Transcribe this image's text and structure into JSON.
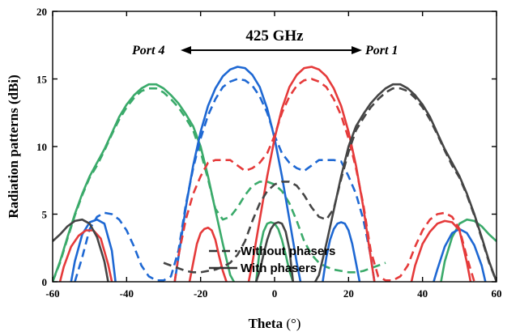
{
  "chart_data": {
    "type": "line",
    "title": "",
    "xlabel_main": "Theta",
    "xlabel_unit": "(°)",
    "ylabel": "Radiation patterns (dBi)",
    "xlim": [
      -60,
      60
    ],
    "ylim": [
      0,
      20
    ],
    "xticks": [
      -60,
      -40,
      -20,
      0,
      20,
      40,
      60
    ],
    "yticks": [
      0,
      5,
      10,
      15,
      20
    ],
    "grid": false,
    "legend_position": "bottom-center",
    "legend": [
      {
        "label": "Without phasers",
        "style": "dashed",
        "color": "#333333"
      },
      {
        "label": "With phasers",
        "style": "solid",
        "color": "#333333"
      }
    ],
    "annotations": {
      "frequency": "425 GHz",
      "left_port": "Port 4",
      "right_port": "Port 1"
    },
    "series": [
      {
        "port": "4",
        "color": "#3aaa6a",
        "style": "solid",
        "x": [
          -60,
          -58,
          -56,
          -54,
          -52,
          -50,
          -48,
          -46,
          -44,
          -42,
          -40,
          -38,
          -36,
          -34,
          -32,
          -30,
          -28,
          -26,
          -24,
          -22,
          -20,
          -18,
          -16,
          -14,
          -12,
          -11
        ],
        "y": [
          0,
          1.5,
          3.3,
          5.0,
          6.5,
          7.8,
          8.8,
          9.8,
          11.0,
          12.2,
          13.1,
          13.8,
          14.3,
          14.6,
          14.6,
          14.3,
          13.8,
          13.2,
          12.4,
          11.5,
          10.0,
          7.8,
          5.3,
          2.8,
          0.5,
          0
        ]
      },
      {
        "port": "4",
        "color": "#3aaa6a",
        "style": "solid",
        "x": [
          -5,
          -4,
          -3,
          -2,
          -1,
          0,
          1,
          2,
          3,
          4,
          5
        ],
        "y": [
          0,
          2.4,
          3.7,
          4.3,
          4.4,
          4.3,
          3.9,
          3.1,
          2.0,
          0.8,
          0
        ]
      },
      {
        "port": "4",
        "color": "#3aaa6a",
        "style": "solid",
        "x": [
          45,
          46,
          48,
          50,
          52,
          54,
          56,
          58,
          60
        ],
        "y": [
          0,
          1.5,
          3.3,
          4.3,
          4.6,
          4.5,
          4.1,
          3.5,
          3.0
        ]
      },
      {
        "port": "4",
        "color": "#3aaa6a",
        "style": "dashed",
        "x": [
          -60,
          -58,
          -56,
          -54,
          -52,
          -50,
          -48,
          -46,
          -44,
          -42,
          -40,
          -38,
          -36,
          -34,
          -32,
          -30,
          -28,
          -26,
          -24,
          -22,
          -20,
          -18,
          -16,
          -14,
          -12,
          -10,
          -8,
          -6,
          -4,
          -2,
          0,
          2,
          4,
          6,
          8,
          10,
          12,
          14,
          16,
          18,
          20,
          22,
          24,
          26,
          28,
          30
        ],
        "y": [
          0,
          1.4,
          3.2,
          4.9,
          6.4,
          7.7,
          8.6,
          9.7,
          10.9,
          12.0,
          12.9,
          13.6,
          14.1,
          14.3,
          14.3,
          14.0,
          13.5,
          12.9,
          12.1,
          11.2,
          9.6,
          7.6,
          5.4,
          4.6,
          4.8,
          5.5,
          6.4,
          7.1,
          7.4,
          7.4,
          7.2,
          6.7,
          5.8,
          4.5,
          3.0,
          2.0,
          1.4,
          1.1,
          0.9,
          0.8,
          0.7,
          0.7,
          0.8,
          1.0,
          1.2,
          1.4
        ]
      },
      {
        "port": "3",
        "color": "#1e68d3",
        "style": "solid",
        "x": [
          -27,
          -26,
          -24,
          -22,
          -20,
          -18,
          -16,
          -14,
          -12,
          -10,
          -8,
          -6,
          -4,
          -2,
          0,
          2,
          4,
          6,
          7
        ],
        "y": [
          0,
          1.8,
          5.5,
          8.6,
          11.1,
          13.0,
          14.3,
          15.2,
          15.7,
          15.9,
          15.8,
          15.3,
          14.4,
          12.8,
          10.6,
          7.8,
          4.6,
          1.4,
          0
        ]
      },
      {
        "port": "3",
        "color": "#1e68d3",
        "style": "solid",
        "x": [
          -55,
          -54,
          -52,
          -50,
          -48,
          -46,
          -44,
          -43
        ],
        "y": [
          0,
          1.5,
          3.5,
          4.4,
          4.6,
          4.3,
          2.3,
          0
        ]
      },
      {
        "port": "3",
        "color": "#1e68d3",
        "style": "solid",
        "x": [
          13,
          14,
          15,
          16,
          17,
          18,
          19,
          20,
          21,
          22,
          23
        ],
        "y": [
          0,
          1.8,
          3.1,
          3.9,
          4.3,
          4.4,
          4.3,
          3.8,
          2.8,
          1.4,
          0
        ]
      },
      {
        "port": "3",
        "color": "#1e68d3",
        "style": "solid",
        "x": [
          43,
          44,
          46,
          48,
          50,
          52,
          54,
          56,
          57
        ],
        "y": [
          0,
          0.9,
          2.6,
          3.6,
          3.9,
          3.6,
          2.7,
          1.2,
          0
        ]
      },
      {
        "port": "3",
        "color": "#1e68d3",
        "style": "dashed",
        "x": [
          -54,
          -52,
          -50,
          -48,
          -46,
          -44,
          -42,
          -40,
          -38,
          -36,
          -34,
          -32,
          -30,
          -28,
          -26,
          -24,
          -22,
          -20,
          -18,
          -16,
          -14,
          -12,
          -10,
          -8,
          -6,
          -4,
          -2,
          0,
          2,
          4,
          6,
          8,
          10,
          12,
          14,
          16,
          18,
          20,
          22,
          24,
          26,
          27
        ],
        "y": [
          0,
          1.8,
          3.9,
          4.8,
          5.1,
          5.0,
          4.6,
          3.8,
          2.6,
          1.2,
          0.4,
          0.1,
          0.1,
          0.4,
          2.3,
          5.7,
          8.4,
          10.6,
          12.3,
          13.5,
          14.4,
          14.8,
          15.0,
          14.9,
          14.5,
          13.7,
          12.5,
          10.8,
          9.5,
          8.8,
          8.4,
          8.2,
          8.6,
          9.0,
          9.0,
          9.0,
          8.9,
          7.8,
          6.5,
          4.6,
          1.9,
          0
        ]
      },
      {
        "port": "2",
        "color": "#e53a3a",
        "style": "solid",
        "x": [
          -7,
          -6,
          -4,
          -2,
          0,
          2,
          4,
          6,
          8,
          10,
          12,
          14,
          16,
          18,
          20,
          22,
          24,
          26,
          27
        ],
        "y": [
          0,
          1.4,
          4.6,
          7.8,
          10.6,
          12.8,
          14.4,
          15.3,
          15.8,
          15.9,
          15.7,
          15.2,
          14.3,
          13.0,
          11.1,
          8.6,
          5.5,
          1.8,
          0
        ]
      },
      {
        "port": "2",
        "color": "#e53a3a",
        "style": "solid",
        "x": [
          -58,
          -57,
          -55,
          -53,
          -51,
          -49,
          -47,
          -45,
          -44
        ],
        "y": [
          0,
          1.1,
          2.6,
          3.4,
          3.8,
          3.8,
          3.2,
          1.3,
          0
        ]
      },
      {
        "port": "2",
        "color": "#e53a3a",
        "style": "solid",
        "x": [
          -23,
          -22,
          -21,
          -20,
          -19,
          -18,
          -17,
          -16,
          -15,
          -14,
          -13
        ],
        "y": [
          0,
          1.4,
          2.8,
          3.6,
          3.9,
          4.0,
          3.8,
          3.1,
          1.9,
          0.8,
          0
        ]
      },
      {
        "port": "2",
        "color": "#e53a3a",
        "style": "solid",
        "x": [
          37,
          38,
          40,
          42,
          44,
          46,
          48,
          50,
          52,
          53
        ],
        "y": [
          0,
          1.2,
          2.8,
          3.7,
          4.3,
          4.5,
          4.4,
          3.8,
          1.4,
          0
        ]
      },
      {
        "port": "2",
        "color": "#e53a3a",
        "style": "dashed",
        "x": [
          -27,
          -26,
          -24,
          -22,
          -20,
          -18,
          -16,
          -14,
          -12,
          -10,
          -8,
          -6,
          -4,
          -2,
          0,
          2,
          4,
          6,
          8,
          10,
          12,
          14,
          16,
          18,
          20,
          22,
          24,
          26,
          28,
          30,
          32,
          34,
          36,
          38,
          40,
          42,
          44,
          46,
          48,
          50,
          52,
          54
        ],
        "y": [
          0,
          1.9,
          4.6,
          6.5,
          7.8,
          8.8,
          9.0,
          9.0,
          9.0,
          8.6,
          8.2,
          8.4,
          8.8,
          9.5,
          10.8,
          12.5,
          13.7,
          14.5,
          14.9,
          15.0,
          14.8,
          14.4,
          13.5,
          12.3,
          10.6,
          8.4,
          5.7,
          2.3,
          0.4,
          0.1,
          0.1,
          0.4,
          1.2,
          2.6,
          3.8,
          4.6,
          5.0,
          5.1,
          4.8,
          3.9,
          1.8,
          0
        ]
      },
      {
        "port": "1",
        "color": "#454545",
        "style": "solid",
        "x": [
          11,
          12,
          14,
          16,
          18,
          20,
          22,
          24,
          26,
          28,
          30,
          32,
          34,
          36,
          38,
          40,
          42,
          44,
          46,
          48,
          50,
          52,
          54,
          56,
          58,
          60
        ],
        "y": [
          0,
          0.5,
          2.8,
          5.3,
          7.8,
          10.0,
          11.5,
          12.4,
          13.2,
          13.8,
          14.3,
          14.6,
          14.6,
          14.3,
          13.8,
          13.1,
          12.2,
          11.0,
          9.8,
          8.8,
          7.8,
          6.5,
          5.0,
          3.3,
          1.5,
          0
        ]
      },
      {
        "port": "1",
        "color": "#454545",
        "style": "solid",
        "x": [
          -60,
          -58,
          -56,
          -54,
          -52,
          -50,
          -48,
          -46,
          -45
        ],
        "y": [
          3.0,
          3.5,
          4.1,
          4.5,
          4.6,
          4.3,
          3.3,
          1.5,
          0
        ]
      },
      {
        "port": "1",
        "color": "#454545",
        "style": "solid",
        "x": [
          -5,
          -4,
          -3,
          -2,
          -1,
          0,
          1,
          2,
          3,
          4,
          5
        ],
        "y": [
          0,
          0.8,
          2.0,
          3.1,
          3.9,
          4.3,
          4.4,
          4.3,
          3.7,
          2.4,
          0
        ]
      },
      {
        "port": "1",
        "color": "#454545",
        "style": "dashed",
        "x": [
          -30,
          -28,
          -26,
          -24,
          -22,
          -20,
          -18,
          -16,
          -14,
          -12,
          -10,
          -8,
          -6,
          -4,
          -2,
          0,
          2,
          4,
          6,
          8,
          10,
          12,
          14,
          16,
          18,
          20,
          22,
          24,
          26,
          28,
          30,
          32,
          34,
          36,
          38,
          40,
          42,
          44,
          46,
          48,
          50,
          52,
          54,
          56,
          58,
          60
        ],
        "y": [
          1.4,
          1.2,
          1.0,
          0.8,
          0.7,
          0.7,
          0.8,
          0.9,
          1.1,
          1.4,
          2.0,
          3.0,
          4.5,
          5.8,
          6.7,
          7.2,
          7.4,
          7.4,
          7.1,
          6.4,
          5.5,
          4.8,
          4.6,
          5.4,
          7.6,
          9.6,
          11.2,
          12.1,
          12.9,
          13.5,
          14.0,
          14.3,
          14.3,
          14.1,
          13.6,
          12.9,
          12.0,
          10.9,
          9.7,
          8.6,
          7.7,
          6.4,
          4.9,
          3.2,
          1.4,
          0
        ]
      }
    ]
  }
}
